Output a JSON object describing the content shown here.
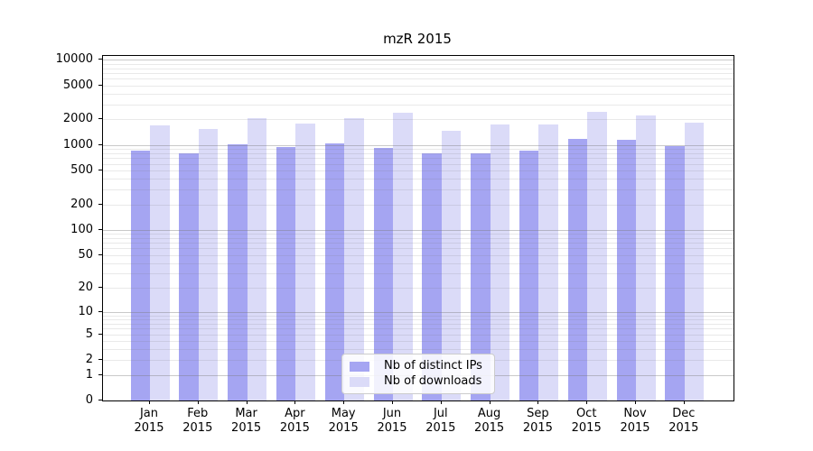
{
  "title": "mzR 2015",
  "colors": {
    "bar_ips": "#a5a5f2",
    "bar_downloads": "#dbdbf8",
    "grid_major": "rgba(120,120,120,0.40)",
    "grid_minor": "rgba(120,120,120,0.16)",
    "spine": "#000000",
    "legend_border": "#cccccc"
  },
  "legend": {
    "items": [
      {
        "label": "Nb of distinct IPs",
        "color_key": "bar_ips"
      },
      {
        "label": "Nb of downloads",
        "color_key": "bar_downloads"
      }
    ]
  },
  "y_axis": {
    "tick_values": [
      0,
      1,
      2,
      5,
      10,
      20,
      50,
      100,
      200,
      500,
      1000,
      2000,
      5000,
      10000
    ]
  },
  "x_axis": {
    "months": [
      "Jan",
      "Feb",
      "Mar",
      "Apr",
      "May",
      "Jun",
      "Jul",
      "Aug",
      "Sep",
      "Oct",
      "Nov",
      "Dec"
    ],
    "year": "2015"
  },
  "chart_data": {
    "type": "bar",
    "title": "mzR 2015",
    "categories": [
      "Jan 2015",
      "Feb 2015",
      "Mar 2015",
      "Apr 2015",
      "May 2015",
      "Jun 2015",
      "Jul 2015",
      "Aug 2015",
      "Sep 2015",
      "Oct 2015",
      "Nov 2015",
      "Dec 2015"
    ],
    "series": [
      {
        "name": "Nb of distinct IPs",
        "values": [
          860,
          800,
          1020,
          940,
          1050,
          930,
          790,
          800,
          865,
          1170,
          1150,
          970
        ]
      },
      {
        "name": "Nb of downloads",
        "values": [
          1700,
          1540,
          2080,
          1790,
          2070,
          2390,
          1480,
          1730,
          1755,
          2430,
          2210,
          1840
        ]
      }
    ],
    "xlabel": "",
    "ylabel": "",
    "yscale": "log1p",
    "ylim": [
      0,
      10900
    ],
    "ytick_values": [
      0,
      1,
      2,
      5,
      10,
      20,
      50,
      100,
      200,
      500,
      1000,
      2000,
      5000,
      10000
    ],
    "grid": "on",
    "grid_minor": "on",
    "legend_position": "lower center"
  }
}
